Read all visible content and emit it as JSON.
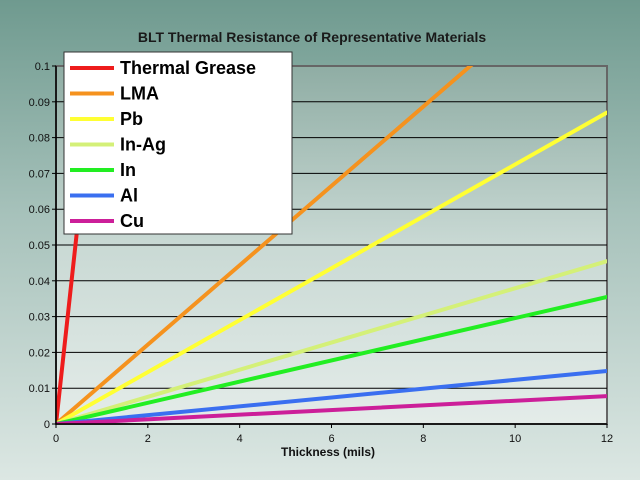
{
  "chart_data": {
    "type": "line",
    "title": "BLT Thermal Resistance of Representative  Materials",
    "xlabel": "Thickness (mils)",
    "ylabel": "",
    "xlim": [
      0,
      12
    ],
    "ylim": [
      0,
      0.1
    ],
    "xticks": [
      "0",
      "2",
      "4",
      "6",
      "8",
      "10",
      "12"
    ],
    "yticks": [
      "0",
      "0.01",
      "0.02",
      "0.03",
      "0.04",
      "0.05",
      "0.06",
      "0.07",
      "0.08",
      "0.09",
      "0.1"
    ],
    "grid": "horizontal",
    "legend_position": "top-left",
    "series": [
      {
        "name": "Thermal Grease",
        "color": "#ee1c1c",
        "x": [
          0,
          1
        ],
        "y": [
          0,
          0.118
        ]
      },
      {
        "name": "LMA",
        "color": "#f5921e",
        "x": [
          0,
          12
        ],
        "y": [
          0,
          0.133
        ]
      },
      {
        "name": "Pb",
        "color": "#ffff33",
        "x": [
          0,
          12
        ],
        "y": [
          0,
          0.087
        ]
      },
      {
        "name": "In-Ag",
        "color": "#d4f078",
        "x": [
          0,
          12
        ],
        "y": [
          0,
          0.0455
        ]
      },
      {
        "name": "In",
        "color": "#22ee22",
        "x": [
          0,
          12
        ],
        "y": [
          0,
          0.0355
        ]
      },
      {
        "name": "Al",
        "color": "#3a6ff0",
        "x": [
          0,
          12
        ],
        "y": [
          0,
          0.0148
        ]
      },
      {
        "name": "Cu",
        "color": "#cc1f99",
        "x": [
          0,
          12
        ],
        "y": [
          0,
          0.0078
        ]
      }
    ]
  }
}
